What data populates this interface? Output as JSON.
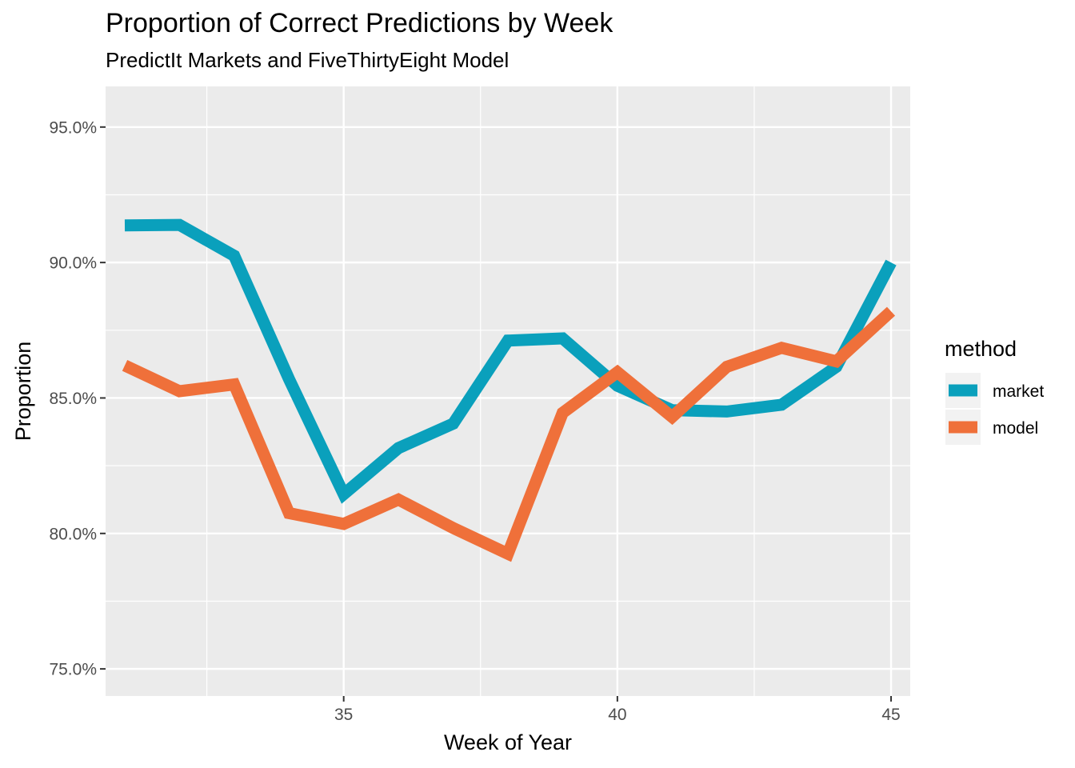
{
  "chart_data": {
    "type": "line",
    "title": "Proportion of Correct Predictions by Week",
    "subtitle": "PredictIt Markets and FiveThirtyEight Model",
    "xlabel": "Week of Year",
    "ylabel": "Proportion",
    "x": [
      31,
      32,
      33,
      34,
      35,
      36,
      37,
      38,
      39,
      40,
      41,
      42,
      43,
      44,
      45
    ],
    "xlim": [
      30.65,
      45.35
    ],
    "ylim": [
      0.74,
      0.965
    ],
    "x_ticks": [
      35,
      40,
      45
    ],
    "x_tick_labels": [
      "35",
      "40",
      "45"
    ],
    "y_ticks": [
      0.75,
      0.8,
      0.85,
      0.9,
      0.95
    ],
    "y_tick_labels": [
      "75.0%",
      "80.0%",
      "85.0%",
      "90.0%",
      "95.0%"
    ],
    "grid": true,
    "legend": {
      "title": "method",
      "position": "right"
    },
    "series": [
      {
        "name": "market",
        "color": "#0aa0bc",
        "values": [
          0.9137,
          0.9139,
          0.9025,
          0.857,
          0.8145,
          0.8315,
          0.8405,
          0.8712,
          0.872,
          0.8545,
          0.8455,
          0.845,
          0.8475,
          0.8615,
          0.9
        ]
      },
      {
        "name": "model",
        "color": "#ef703a",
        "values": [
          0.862,
          0.8525,
          0.855,
          0.8075,
          0.8035,
          0.8125,
          0.802,
          0.7925,
          0.8445,
          0.8595,
          0.843,
          0.8615,
          0.8685,
          0.8635,
          0.882
        ]
      }
    ]
  }
}
